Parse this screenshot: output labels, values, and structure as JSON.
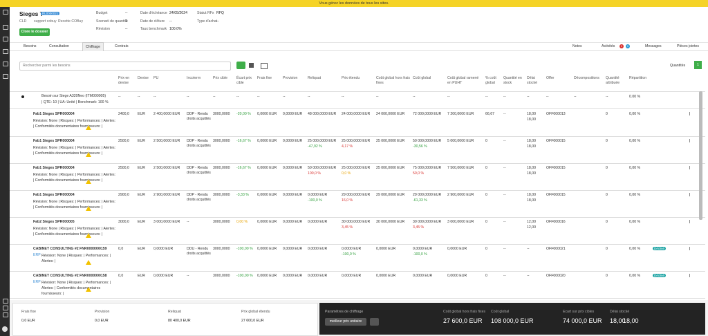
{
  "banner": "Vous gérez les données de tous les sites.",
  "header": {
    "title": "Sieges T",
    "badge": "RL0000021",
    "meta": [
      "CLD",
      "support cobuy",
      "Recette COBuy"
    ],
    "button": "Clore le dossier",
    "fields": [
      [
        {
          "label": "Budget",
          "value": "--"
        },
        {
          "label": "Scenarii de quantité",
          "value": "1"
        },
        {
          "label": "Révision",
          "value": "--"
        }
      ],
      [
        {
          "label": "Date d'échéance",
          "value": "24/05/2024"
        },
        {
          "label": "Date de clôture",
          "value": "--"
        },
        {
          "label": "Taux benchmark",
          "value": "100.0%"
        }
      ],
      [
        {
          "label": "Statut RFx",
          "value": "RFQ"
        },
        {
          "label": "Type d'achat",
          "value": "--"
        }
      ]
    ]
  },
  "tabs": {
    "items": [
      "Besoins",
      "Consultation",
      "Chiffrage",
      "Contrats"
    ],
    "active": 2,
    "right": [
      "Notes",
      "Activités",
      "Messages",
      "Pièces jointes"
    ],
    "activity_badges": [
      "2",
      "0"
    ]
  },
  "toolbar": {
    "search": "Rechercher parmi les besoins",
    "quantity_label": "Quantités",
    "quantity": "1"
  },
  "table": {
    "columns": [
      "Prix en devise",
      "Devise",
      "PU",
      "Incoterm",
      "Prix cible",
      "Écart prix cible",
      "Frais fixe",
      "Provision",
      "Reliquat",
      "Prix étendu",
      "Coût global hors frais fixes",
      "Coût global",
      "Coût global ramené en PUHT",
      "% coût global",
      "Quantité en stock",
      "Délai stocké",
      "Offre",
      "Décompositions",
      "Quantité attribuée",
      "Répartition"
    ],
    "group": {
      "name": "Besoin sur Siege A320Neo (ITM000005)",
      "details": "| QTE: 10 | UA: Unité | Benchmark: 100 %",
      "cells": [
        "--",
        "--",
        "--",
        "--",
        "--",
        "--",
        "--",
        "--",
        "--",
        "--",
        "--",
        "--",
        "--",
        "--",
        "--",
        "--",
        "--",
        "--",
        "--",
        "0.00 %"
      ]
    },
    "rows": [
      {
        "name": "Fab1 Sieges SPR000004",
        "details": "Révision: None | Risques: | Performances: | Alertes: | Conformités documentaires fournisseurs: |",
        "cells": [
          "2400,0",
          "EUR",
          "2 400,0000 EUR",
          "DDP - Rendu droits acquittés",
          "3000,0000",
          {
            "text": "-20,00 %",
            "tone": "green"
          },
          "0,0000 EUR",
          "0,0000 EUR",
          "48 000,0000 EUR",
          "24 000,0000 EUR",
          "24 000,0000 EUR",
          "72 000,0000 EUR",
          "7 200,0000 EUR",
          "66,67",
          "--",
          {
            "text": "18,00",
            "note": "18,00"
          },
          "OFF000013",
          "",
          "0",
          "0,00 %"
        ]
      },
      {
        "name": "Fab1 Sieges SPR000004",
        "details": "Révision: None | Risques: | Performances: | Alertes: | Conformités documentaires fournisseurs: |",
        "cells": [
          "2500,0",
          "EUR",
          "2 500,0000 EUR",
          "DDP - Rendu droits acquittés",
          "3000,0000",
          {
            "text": "-16,67 %",
            "tone": "green"
          },
          "0,0000 EUR",
          "0,0000 EUR",
          {
            "text": "25 000,0000 EUR",
            "note": "-47,92 %",
            "tone": "green"
          },
          {
            "text": "25 000,0000 EUR",
            "note": "4,17 %",
            "tone": "red"
          },
          "25 000,0000 EUR",
          {
            "text": "50 000,0000 EUR",
            "note": "-30,56 %",
            "tone": "green"
          },
          "5 000,0000 EUR",
          "0",
          "--",
          {
            "text": "18,00",
            "note": "18,00"
          },
          "OFF000015",
          "",
          "0",
          "0,00 %"
        ]
      },
      {
        "name": "Fab1 Sieges SPR000004",
        "details": "Révision: None | Risques: | Performances: | Alertes: | Conformités documentaires fournisseurs: |",
        "cells": [
          "2500,0",
          "EUR",
          "2 500,0000 EUR",
          "DDP - Rendu droits acquittés",
          "3000,0000",
          {
            "text": "-16,67 %",
            "tone": "green"
          },
          "0,0000 EUR",
          "0,0000 EUR",
          {
            "text": "50 000,0000 EUR",
            "note": "100,0 %",
            "tone": "red"
          },
          {
            "text": "25 000,0000 EUR",
            "note": "0,0 %",
            "tone": "orange"
          },
          "25 000,0000 EUR",
          {
            "text": "75 000,0000 EUR",
            "note": "50,0 %",
            "tone": "red"
          },
          "7 500,0000 EUR",
          "0",
          "--",
          {
            "text": "18,00",
            "note": "18,00"
          },
          "OFF000015",
          "",
          "0",
          "0,00 %"
        ]
      },
      {
        "name": "Fab1 Sieges SPR000004",
        "details": "Révision: None | Risques: | Performances: | Alertes: | Conformités documentaires fournisseurs: |",
        "cells": [
          "2900,0",
          "EUR",
          "2 900,0000 EUR",
          "DDP - Rendu droits acquittés",
          "3000,0000",
          {
            "text": "-3,33 %",
            "tone": "green"
          },
          "0,0000 EUR",
          "0,0000 EUR",
          {
            "text": "0,0000 EUR",
            "note": "-100,0 %",
            "tone": "green"
          },
          {
            "text": "29 000,0000 EUR",
            "note": "16,0 %",
            "tone": "red"
          },
          "29 000,0000 EUR",
          {
            "text": "29 000,0000 EUR",
            "note": "-61,33 %",
            "tone": "green"
          },
          "2 900,0000 EUR",
          "0",
          "--",
          {
            "text": "18,00",
            "note": "18,00"
          },
          "OFF000015",
          "",
          "0",
          "0,00 %"
        ]
      },
      {
        "name": "Fab2 Sieges SPR000005",
        "details": "Révision: None | Risques: | Performances: | Alertes: | Conformités documentaires fournisseurs: |",
        "cells": [
          "3000,0",
          "EUR",
          "3 000,0000 EUR",
          "--",
          "3000,0000",
          {
            "text": "0,00 %",
            "tone": "orange"
          },
          "0,0000 EUR",
          "0,0000 EUR",
          "0,0000 EUR",
          {
            "text": "30 000,0000 EUR",
            "note": "3,45 %",
            "tone": "red"
          },
          "30 000,0000 EUR",
          {
            "text": "30 000,0000 EUR",
            "note": "3,45 %",
            "tone": "red"
          },
          "3 000,0000 EUR",
          "0",
          "--",
          {
            "text": "12,00",
            "note": "12,00"
          },
          "OFF000016",
          "",
          "0",
          "0,00 %"
        ]
      },
      {
        "name": "CABINET CONSULTING #2 FNR0000000159",
        "tag": "ERP",
        "details": "Révision: None | Risques: | Performances: | Alertes: |",
        "badge": "Décliné",
        "cells": [
          "0,0",
          "EUR",
          "0,0000 EUR",
          "DDU - Rendu droits acquittés",
          "3000,0000",
          {
            "text": "-100,00 %",
            "tone": "green"
          },
          "0,0000 EUR",
          "0,0000 EUR",
          "0,0000 EUR",
          {
            "text": "0,0000 EUR",
            "note": "-100,0 %",
            "tone": "green"
          },
          "0,0000 EUR",
          {
            "text": "0,0000 EUR",
            "note": "-100,0 %",
            "tone": "green"
          },
          "0,0000 EUR",
          "0",
          "--",
          "--",
          "OFF000021",
          "",
          "0",
          "0,00 %"
        ]
      },
      {
        "name": "CABINET CONSULTING #2 FNR0000000158",
        "tag": "ERP",
        "details": "Révision: None | Risques: | Performances: | Alertes: | Conformités documentaires fournisseurs: |",
        "badge": "Décliné",
        "cells": [
          "0,0",
          "EUR",
          "0,0000 EUR",
          "--",
          "3000,0000",
          {
            "text": "-100,00 %",
            "tone": "green"
          },
          "0,0000 EUR",
          "0,0000 EUR",
          "0,0000 EUR",
          "0,0000 EUR",
          "0,0000 EUR",
          "0,0000 EUR",
          "0,0000 EUR",
          "0",
          "--",
          "--",
          "OFF000020",
          "",
          "0",
          "0,00 %"
        ]
      }
    ]
  },
  "footer": {
    "totals": [
      {
        "label": "Frais fixe",
        "value": "0,0 EUR"
      },
      {
        "label": "Provision",
        "value": "0,0 EUR"
      },
      {
        "label": "Reliquat",
        "value": "80 400,0 EUR"
      },
      {
        "label": "Prix global étendu",
        "value": "27 600,0 EUR"
      }
    ],
    "settings_label": "Paramètres de chiffrage",
    "settings_button": "meilleur prix unitaire",
    "stats": [
      {
        "label": "Coût global hors frais fixes",
        "value": "27 600,0 EUR"
      },
      {
        "label": "Coût global",
        "value": "108 000,0 EUR"
      },
      {
        "label": "Ecart sur prix cibles",
        "value": "74 000,0 EUR"
      },
      {
        "label": "Délai stocké",
        "value": "18,00",
        "value2": "18,00"
      }
    ]
  }
}
